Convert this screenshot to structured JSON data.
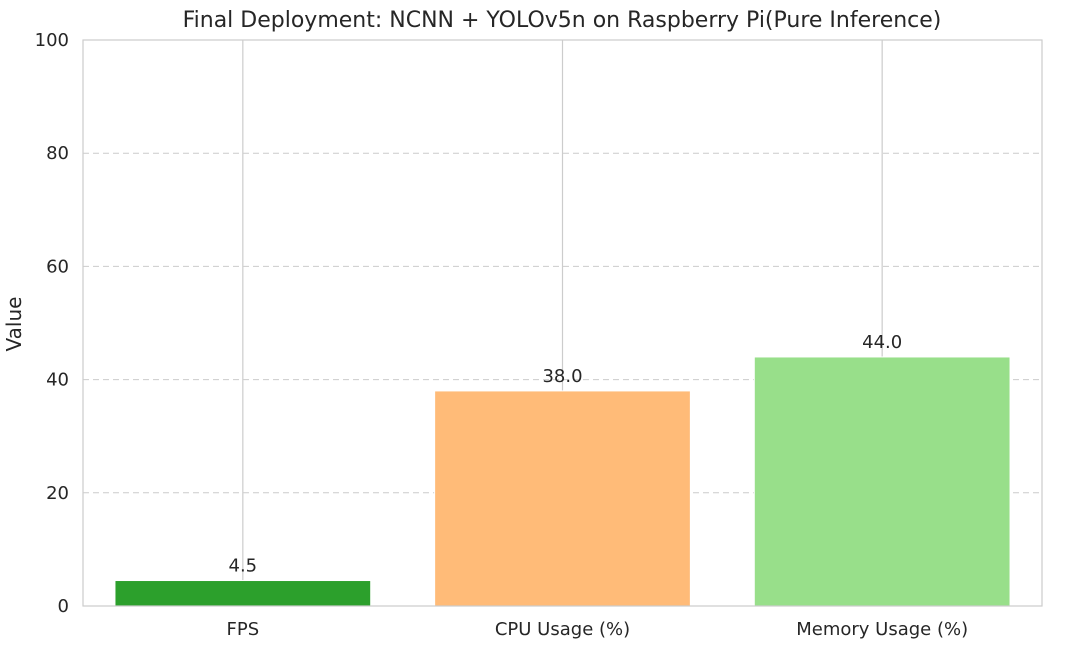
{
  "chart_data": {
    "type": "bar",
    "title": "Final Deployment: NCNN + YOLOv5n on Raspberry Pi(Pure Inference)",
    "xlabel": "",
    "ylabel": "Value",
    "ylim": [
      0,
      100
    ],
    "yticks": [
      0,
      20,
      40,
      60,
      80,
      100
    ],
    "grid": true,
    "categories": [
      "FPS",
      "CPU Usage (%)",
      "Memory Usage (%)"
    ],
    "values": [
      4.5,
      38.0,
      44.0
    ],
    "value_labels": [
      "4.5",
      "38.0",
      "44.0"
    ],
    "colors": [
      "#2ca02c",
      "#ffbb78",
      "#98df8a"
    ]
  }
}
